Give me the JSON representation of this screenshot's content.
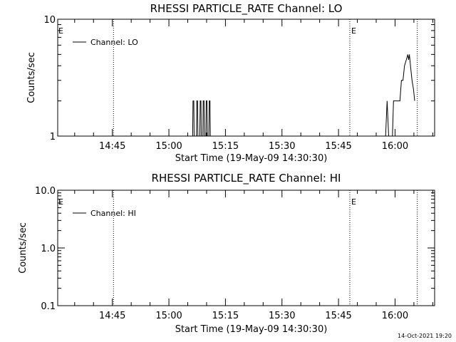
{
  "footer": {
    "timestamp": "14-Oct-2021 19:20"
  },
  "chart_data": [
    {
      "type": "line",
      "title": "RHESSI PARTICLE_RATE Channel: LO",
      "xlabel": "Start Time (19-May-09 14:30:30)",
      "ylabel": "Counts/sec",
      "yscale": "log",
      "ylim": [
        1,
        10
      ],
      "y_ticks": [
        {
          "value": 1,
          "label": "1"
        },
        {
          "value": 10,
          "label": "10"
        }
      ],
      "x_unit": "minutes since 14:30:30",
      "xlim": [
        0,
        100
      ],
      "x_ticks": [
        {
          "value": 14.5,
          "label": "14:45"
        },
        {
          "value": 29.5,
          "label": "15:00"
        },
        {
          "value": 44.5,
          "label": "15:15"
        },
        {
          "value": 59.5,
          "label": "15:30"
        },
        {
          "value": 74.5,
          "label": "15:45"
        },
        {
          "value": 89.5,
          "label": "16:00"
        }
      ],
      "event_lines": [
        {
          "x": 14.8,
          "marker": ""
        },
        {
          "x": 77.5,
          "marker": "E"
        },
        {
          "x": 95.4,
          "marker": ""
        }
      ],
      "left_marker": "E",
      "legend": {
        "position": "top-left",
        "label": "Channel: LO"
      },
      "series": [
        {
          "name": "Channel: LO",
          "points": [
            [
              0,
              1
            ],
            [
              35.8,
              1
            ],
            [
              35.9,
              2
            ],
            [
              36.1,
              2
            ],
            [
              36.2,
              1
            ],
            [
              36.8,
              1
            ],
            [
              36.9,
              2
            ],
            [
              37.1,
              2
            ],
            [
              37.2,
              1
            ],
            [
              37.7,
              1
            ],
            [
              37.8,
              2
            ],
            [
              38.0,
              2
            ],
            [
              38.1,
              1
            ],
            [
              38.5,
              1
            ],
            [
              38.6,
              2
            ],
            [
              38.8,
              2
            ],
            [
              38.9,
              1
            ],
            [
              39.3,
              1
            ],
            [
              39.4,
              2
            ],
            [
              39.6,
              2
            ],
            [
              39.7,
              1
            ],
            [
              40.1,
              1
            ],
            [
              40.2,
              2
            ],
            [
              40.4,
              2
            ],
            [
              40.5,
              1
            ],
            [
              87.0,
              1
            ],
            [
              87.4,
              2
            ],
            [
              87.8,
              1
            ],
            [
              88.8,
              1
            ],
            [
              89.1,
              2
            ],
            [
              90.8,
              2
            ],
            [
              91.2,
              3
            ],
            [
              91.6,
              3
            ],
            [
              92.0,
              4
            ],
            [
              92.5,
              4.5
            ],
            [
              92.9,
              5
            ],
            [
              93.1,
              4.5
            ],
            [
              93.3,
              5
            ],
            [
              93.6,
              4
            ],
            [
              94.0,
              3
            ],
            [
              94.4,
              2.5
            ],
            [
              94.7,
              2
            ]
          ]
        }
      ]
    },
    {
      "type": "line",
      "title": "RHESSI PARTICLE_RATE Channel: HI",
      "xlabel": "Start Time (19-May-09 14:30:30)",
      "ylabel": "Counts/sec",
      "yscale": "log",
      "ylim": [
        0.1,
        10
      ],
      "y_ticks": [
        {
          "value": 0.1,
          "label": "0.1"
        },
        {
          "value": 1,
          "label": "1.0"
        },
        {
          "value": 10,
          "label": "10.0"
        }
      ],
      "x_unit": "minutes since 14:30:30",
      "xlim": [
        0,
        100
      ],
      "x_ticks": [
        {
          "value": 14.5,
          "label": "14:45"
        },
        {
          "value": 29.5,
          "label": "15:00"
        },
        {
          "value": 44.5,
          "label": "15:15"
        },
        {
          "value": 59.5,
          "label": "15:30"
        },
        {
          "value": 74.5,
          "label": "15:45"
        },
        {
          "value": 89.5,
          "label": "16:00"
        }
      ],
      "event_lines": [
        {
          "x": 14.8,
          "marker": ""
        },
        {
          "x": 77.5,
          "marker": "E"
        },
        {
          "x": 95.4,
          "marker": ""
        }
      ],
      "left_marker": "E",
      "legend": {
        "position": "top-left",
        "label": "Channel: HI"
      },
      "series": [
        {
          "name": "Channel: HI",
          "points": []
        }
      ]
    }
  ]
}
